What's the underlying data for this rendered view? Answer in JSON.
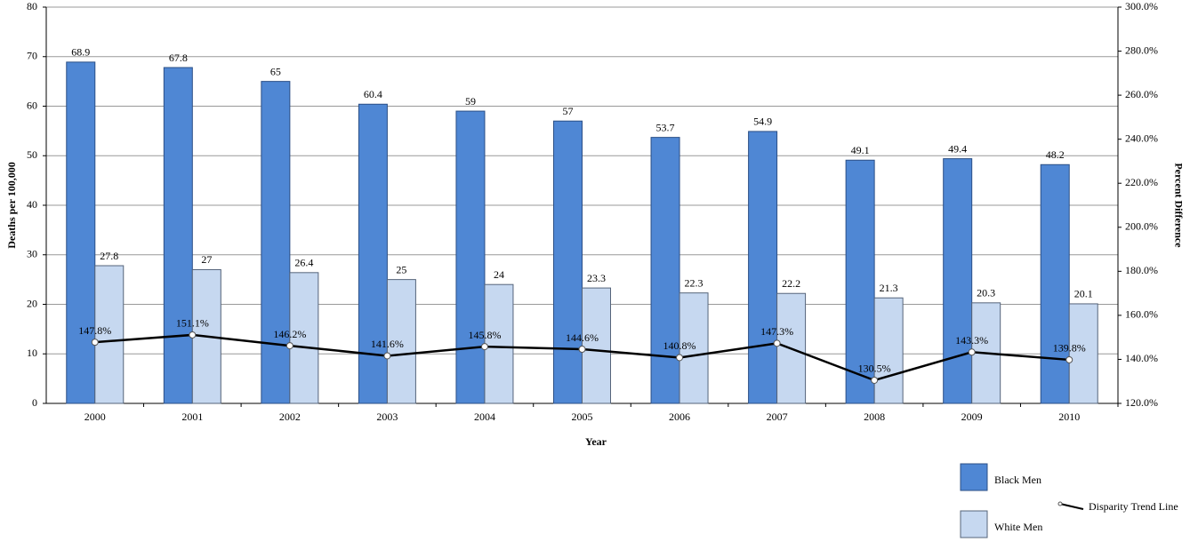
{
  "chart_data": {
    "type": "bar-line",
    "categories": [
      "2000",
      "2001",
      "2002",
      "2003",
      "2004",
      "2005",
      "2006",
      "2007",
      "2008",
      "2009",
      "2010"
    ],
    "series": [
      {
        "name": "Black Men",
        "color": "#4f87d4",
        "values": [
          68.9,
          67.8,
          65,
          60.4,
          59,
          57,
          53.7,
          54.9,
          49.1,
          49.4,
          48.2
        ]
      },
      {
        "name": "White Men",
        "color": "#c6d8f0",
        "values": [
          27.8,
          27,
          26.4,
          25,
          24,
          23.3,
          22.3,
          22.2,
          21.3,
          20.3,
          20.1
        ]
      },
      {
        "name": "Disparity Trend Line",
        "color": "#000000",
        "axis": "y2",
        "values": [
          147.8,
          151.1,
          146.2,
          141.6,
          145.8,
          144.6,
          140.8,
          147.3,
          130.5,
          143.3,
          139.8
        ],
        "value_labels": [
          "147.8%",
          "151.1%",
          "146.2%",
          "141.6%",
          "145.8%",
          "144.6%",
          "140.8%",
          "147.3%",
          "130.5%",
          "143.3%",
          "139.8%"
        ]
      }
    ],
    "xlabel": "Year",
    "ylabel": "Deaths per 100,000",
    "y2label": "Percent Difference",
    "ylim": [
      0,
      80
    ],
    "yticks": [
      0,
      10,
      20,
      30,
      40,
      50,
      60,
      70,
      80
    ],
    "y2lim": [
      120,
      300
    ],
    "y2ticks": [
      {
        "value": 120,
        "label": "120.0%"
      },
      {
        "value": 140,
        "label": "140.0%"
      },
      {
        "value": 160,
        "label": "160.0%"
      },
      {
        "value": 180,
        "label": "180.0%"
      },
      {
        "value": 200,
        "label": "200.0%"
      },
      {
        "value": 220,
        "label": "220.0%"
      },
      {
        "value": 240,
        "label": "240.0%"
      },
      {
        "value": 260,
        "label": "260.0%"
      },
      {
        "value": 280,
        "label": "280.0%"
      },
      {
        "value": 300,
        "label": "300.0%"
      }
    ],
    "grid": true,
    "legend": "bottom-right"
  }
}
